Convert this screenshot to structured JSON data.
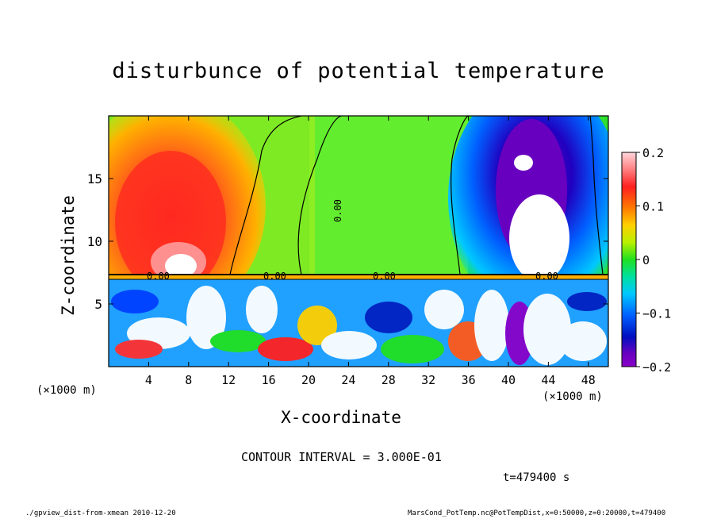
{
  "title": "disturbunce of potential temperature",
  "xlabel": "X-coordinate",
  "ylabel": "Z-coordinate",
  "x_unit_left": "(×1000 m)",
  "x_unit_right": "(×1000 m)",
  "contour_interval": "CONTOUR INTERVAL = 3.000E-01",
  "time_label": "t=479400 s",
  "footer_left": "./gpview_dist-from-xmean  2010-12-20",
  "footer_right": "MarsCond_PotTemp.nc@PotTempDist,x=0:50000,z=0:20000,t=479400",
  "chart_data": {
    "type": "heatmap",
    "title": "disturbunce of potential temperature",
    "xlabel": "X-coordinate",
    "ylabel": "Z-coordinate",
    "xlim": [
      0,
      50
    ],
    "ylim": [
      0,
      20
    ],
    "x_ticks": [
      4,
      8,
      12,
      16,
      20,
      24,
      28,
      32,
      36,
      40,
      44,
      48
    ],
    "y_ticks": [
      5,
      10,
      15
    ],
    "colorbar": {
      "range": [
        -0.2,
        0.2
      ],
      "ticks": [
        0.2,
        0.1,
        0,
        -0.1,
        -0.2
      ],
      "tick_labels": [
        "0.2",
        "0.1",
        "0",
        "−0.1",
        "−0.2"
      ],
      "placement": "right"
    },
    "contour_labels": [
      "0.00",
      "0.00",
      "0.00",
      "0.00",
      "0.00"
    ],
    "annotations": [
      "CONTOUR INTERVAL = 3.000E-01",
      "t=479400 s"
    ],
    "grid": false
  }
}
